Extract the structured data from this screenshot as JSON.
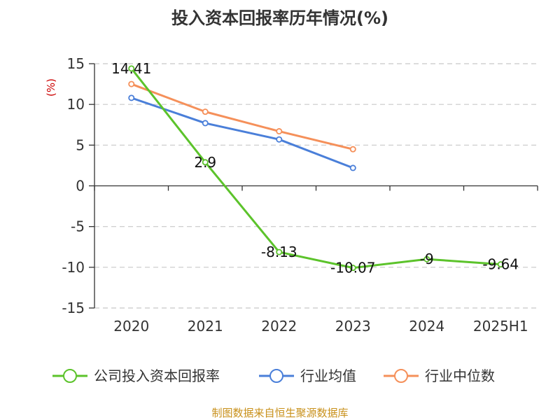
{
  "chart_data": {
    "type": "line",
    "title": "投入资本回报率历年情况(%)",
    "ylabel": "(%)",
    "categories": [
      "2020",
      "2021",
      "2022",
      "2023",
      "2024",
      "2025H1"
    ],
    "ylim": [
      -15,
      15
    ],
    "yticks": [
      15,
      10,
      5,
      0,
      -5,
      -10,
      -15
    ],
    "grid": true,
    "legend_position": "bottom",
    "series": [
      {
        "name": "公司投入资本回报率",
        "color": "#5cc32b",
        "values": [
          14.41,
          2.9,
          -8.13,
          -10.07,
          -9,
          -9.64
        ],
        "labels": [
          "14.41",
          "2.9",
          "-8.13",
          "-10.07",
          "-9",
          "-9.64"
        ]
      },
      {
        "name": "行业均值",
        "color": "#4a7fd9",
        "values": [
          10.8,
          7.7,
          5.7,
          2.2,
          null,
          null
        ]
      },
      {
        "name": "行业中位数",
        "color": "#f5905a",
        "values": [
          12.5,
          9.1,
          6.7,
          4.5,
          null,
          null
        ]
      }
    ]
  },
  "colors": {
    "ylabel": "#cc0000",
    "source": "#c8901a",
    "axis": "#333333",
    "grid": "#c8c8c8"
  },
  "source": "制图数据来自恒生聚源数据库"
}
